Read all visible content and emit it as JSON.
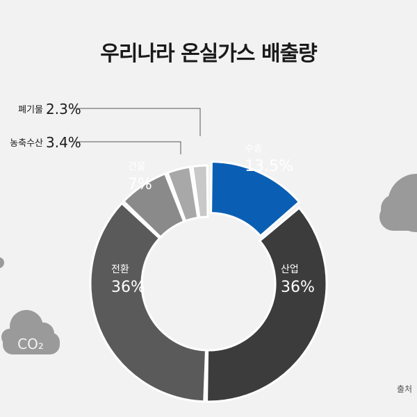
{
  "title": "우리나라 온실가스 배출량",
  "source": "출처",
  "cloud_label": "CO₂",
  "colors": {
    "transport": "#0a5fb4",
    "industry": "#3c3c3c",
    "power": "#5a5a5a",
    "building": "#8a8a8a",
    "agriculture": "#a8a8a8",
    "waste": "#c8c8c8",
    "background": "#f2f2f2",
    "cloud": "#9a9a9a"
  },
  "chart_data": {
    "type": "pie",
    "title": "우리나라 온실가스 배출량",
    "unit": "%",
    "slices": [
      {
        "label": "수송",
        "value": 13.5,
        "value_label": "13.5%"
      },
      {
        "label": "산업",
        "value": 36,
        "value_label": "36%"
      },
      {
        "label": "전환",
        "value": 36,
        "value_label": "36%"
      },
      {
        "label": "건물",
        "value": 7,
        "value_label": "7%"
      },
      {
        "label": "농축수산",
        "value": 3.4,
        "value_label": "3.4%"
      },
      {
        "label": "폐기물",
        "value": 2.3,
        "value_label": "2.3%"
      }
    ]
  }
}
